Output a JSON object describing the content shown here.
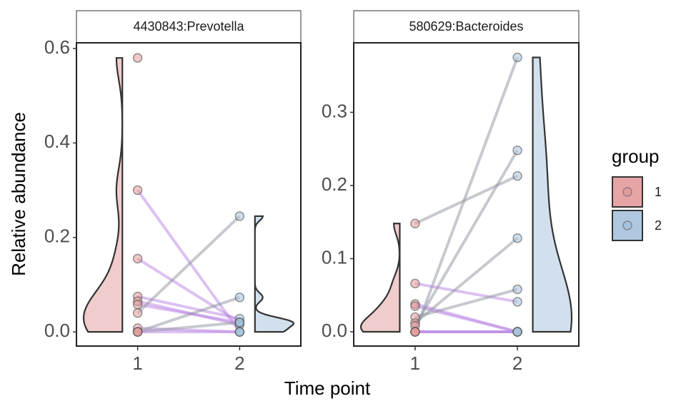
{
  "chart_data": {
    "type": "paired-raincloud",
    "y_label": "Relative abundance",
    "x_label": "Time point",
    "legend_title": "group",
    "groups": [
      {
        "name": "1",
        "color": "#e39a9a"
      },
      {
        "name": "2",
        "color": "#a6c2dc"
      }
    ],
    "up_color": "#8e939e",
    "down_color": "#b983e3",
    "categories": [
      "1",
      "2"
    ],
    "panels": [
      {
        "title": "4430843:Prevotella",
        "ylim": [
          -0.03,
          0.612
        ],
        "yticks": [
          {
            "value": 0,
            "label": "0.0"
          },
          0.2,
          0.4,
          0.6
        ],
        "t1": [
          0.58,
          0.3,
          0.155,
          0.075,
          0.065,
          0.058,
          0.04,
          0.008,
          0,
          0,
          0
        ],
        "t2": [
          null,
          0,
          0.02,
          0.028,
          0.015,
          0.02,
          0.245,
          0,
          0.073,
          0.02,
          0
        ]
      },
      {
        "title": "580629:Bacteroides",
        "ylim": [
          -0.0195,
          0.395
        ],
        "yticks": [
          {
            "value": 0,
            "label": "0.0"
          },
          0.1,
          0.2,
          0.3
        ],
        "t1": [
          0.148,
          0.066,
          0.038,
          0.035,
          0.02,
          0.012,
          0.008,
          0,
          0,
          0,
          0
        ],
        "t2": [
          0.213,
          0.041,
          0,
          0,
          0.058,
          0.128,
          0.248,
          0.375,
          0,
          0,
          0
        ]
      }
    ]
  }
}
